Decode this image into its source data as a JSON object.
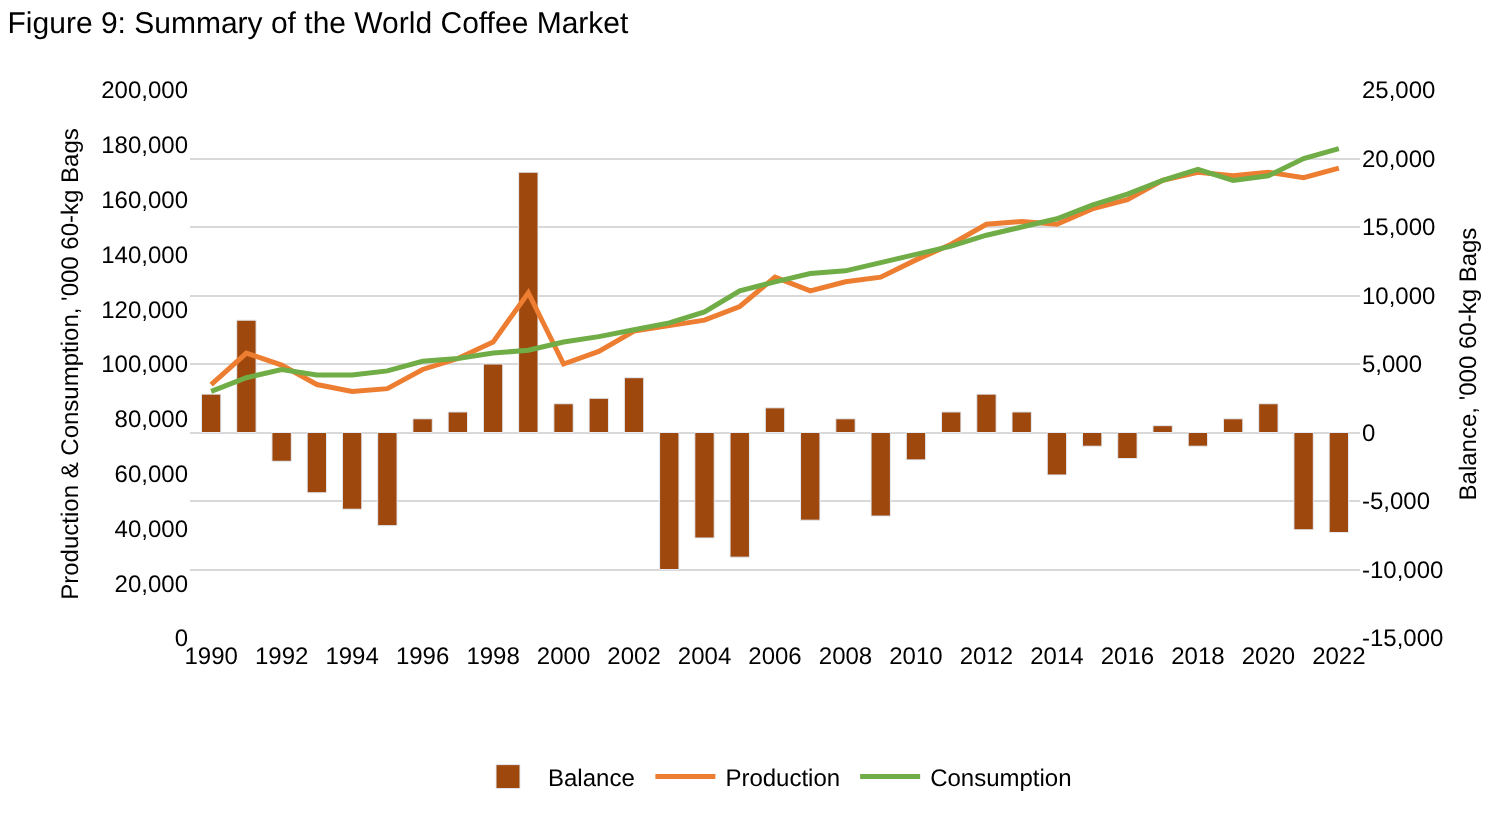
{
  "chart_data": {
    "type": "line",
    "title": "Figure 9: Summary of the World Coffee Market",
    "ylabel": "Production & Consumption, '000 60-kg Bags",
    "y2label": "Balance, '000 60-kg Bags",
    "x": [
      1990,
      1991,
      1992,
      1993,
      1994,
      1995,
      1996,
      1997,
      1998,
      1999,
      2000,
      2001,
      2002,
      2003,
      2004,
      2005,
      2006,
      2007,
      2008,
      2009,
      2010,
      2011,
      2012,
      2013,
      2014,
      2015,
      2016,
      2017,
      2018,
      2019,
      2020,
      2021,
      2022
    ],
    "series": [
      {
        "name": "Balance",
        "type": "bar",
        "axis": "y2",
        "color": "#9e480e",
        "values": [
          2800,
          8200,
          -2100,
          -4400,
          -5600,
          -6800,
          1000,
          1500,
          5000,
          19000,
          2100,
          2500,
          4000,
          -10000,
          -7700,
          -9100,
          1800,
          -6400,
          1000,
          -6100,
          -2000,
          1500,
          2800,
          1500,
          -3100,
          -1000,
          -1900,
          500,
          -1000,
          1000,
          2100,
          -7100,
          -7300
        ]
      },
      {
        "name": "Production",
        "color": "#ed7d31",
        "values": [
          92500,
          104000,
          99600,
          92500,
          90000,
          91000,
          98000,
          102000,
          108000,
          126000,
          100000,
          104600,
          112000,
          114000,
          116000,
          121000,
          131700,
          126700,
          130000,
          131700,
          138000,
          143700,
          151000,
          152000,
          151000,
          156600,
          160000,
          167000,
          170000,
          168700,
          170000,
          168000,
          171500
        ]
      },
      {
        "name": "Consumption",
        "color": "#70ad47",
        "values": [
          90000,
          95000,
          98000,
          96000,
          96000,
          97500,
          101000,
          102000,
          104000,
          105000,
          108000,
          110000,
          112500,
          115000,
          119000,
          126700,
          130000,
          133000,
          134000,
          137000,
          140000,
          143000,
          147000,
          150000,
          153000,
          158000,
          162000,
          167000,
          171000,
          167000,
          168700,
          175000,
          178600
        ]
      }
    ],
    "xlim": [
      1989.4,
      2022.6
    ],
    "xticks": [
      1990,
      1992,
      1994,
      1996,
      1998,
      2000,
      2002,
      2004,
      2006,
      2008,
      2010,
      2012,
      2014,
      2016,
      2018,
      2020,
      2022
    ],
    "ylim": [
      0,
      200000
    ],
    "yticks": [
      {
        "value": 0,
        "label": "0"
      },
      {
        "value": 20000,
        "label": "20,000"
      },
      {
        "value": 40000,
        "label": "40,000"
      },
      {
        "value": 60000,
        "label": "60,000"
      },
      {
        "value": 80000,
        "label": "80,000"
      },
      {
        "value": 100000,
        "label": "100,000"
      },
      {
        "value": 120000,
        "label": "120,000"
      },
      {
        "value": 140000,
        "label": "140,000"
      },
      {
        "value": 160000,
        "label": "160,000"
      },
      {
        "value": 180000,
        "label": "180,000"
      },
      {
        "value": 200000,
        "label": "200,000"
      }
    ],
    "y2lim": [
      -15000,
      25000
    ],
    "y2ticks": [
      {
        "value": -15000,
        "label": "-15,000"
      },
      {
        "value": -10000,
        "label": "-10,000"
      },
      {
        "value": -5000,
        "label": "-5,000"
      },
      {
        "value": 0,
        "label": "0"
      },
      {
        "value": 5000,
        "label": "5,000"
      },
      {
        "value": 10000,
        "label": "10,000"
      },
      {
        "value": 15000,
        "label": "15,000"
      },
      {
        "value": 20000,
        "label": "20,000"
      },
      {
        "value": 25000,
        "label": "25,000"
      }
    ],
    "grid": "y",
    "legend": "bottom",
    "marker": "none",
    "line_style": "solid"
  }
}
